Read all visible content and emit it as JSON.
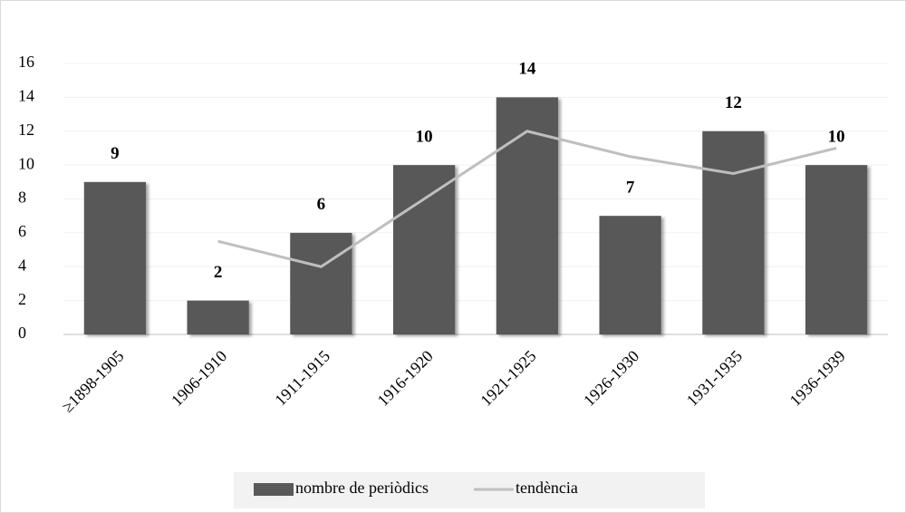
{
  "chart_data": {
    "type": "bar",
    "categories": [
      "≥1898-1905",
      "1906-1910",
      "1911-1915",
      "1916-1920",
      "1921-1925",
      "1926-1930",
      "1931-1935",
      "1936-1939"
    ],
    "series": [
      {
        "name": "nombre de periòdics",
        "type": "bar",
        "color": "#595959",
        "values": [
          9,
          2,
          6,
          10,
          14,
          7,
          12,
          10
        ]
      },
      {
        "name": "tendència",
        "type": "line",
        "color": "#bfbfbf",
        "values": [
          null,
          5.5,
          4,
          8,
          12,
          10.5,
          9.5,
          11
        ]
      }
    ],
    "ylim": [
      0,
      16
    ],
    "yticks": [
      0,
      2,
      4,
      6,
      8,
      10,
      12,
      14,
      16
    ],
    "grid": true,
    "legend": "bottom"
  }
}
